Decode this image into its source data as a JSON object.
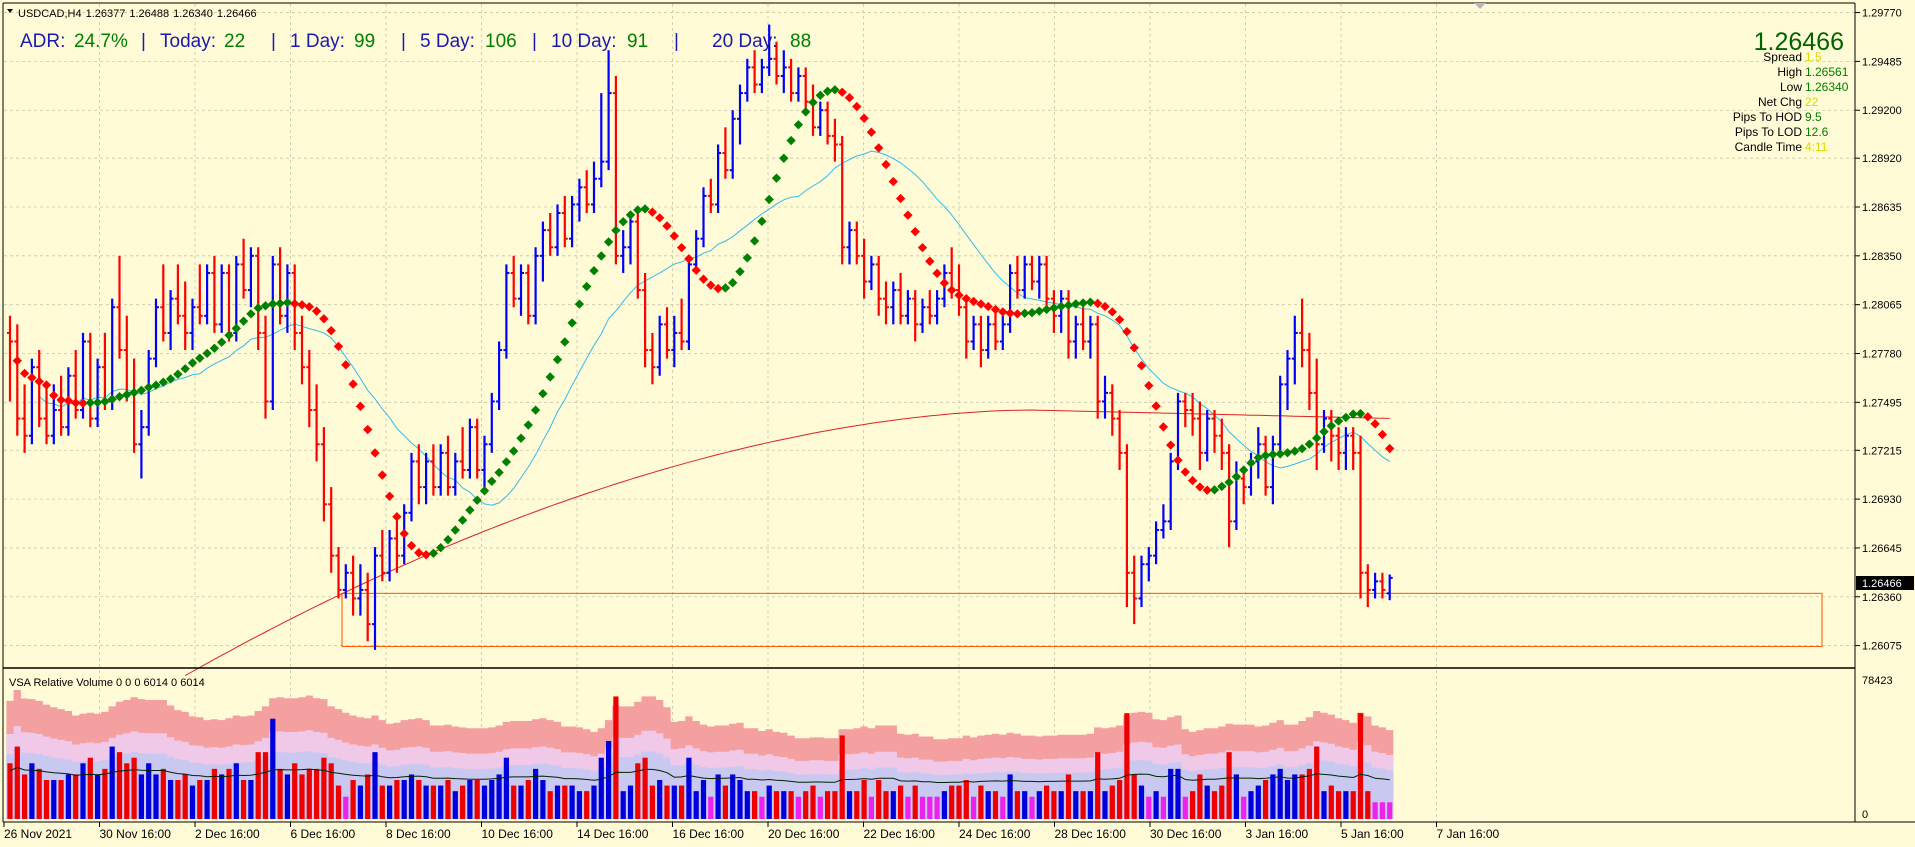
{
  "chart_data": {
    "type": "bar",
    "symbol_header": {
      "symbol": "USDCAD,H4",
      "open": "1.26377",
      "high": "1.26488",
      "low": "1.26340",
      "close": "1.26466"
    },
    "adr_panel": {
      "adr_label": "ADR:",
      "adr_value": "24.7%",
      "today_label": "Today:",
      "today_value": "22",
      "day1_label": "1 Day:",
      "day1_value": "99",
      "day5_label": "5 Day:",
      "day5_value": "106",
      "day10_label": "10 Day:",
      "day10_value": "91",
      "day20_label": "20 Day:",
      "day20_value": "88",
      "separator": "|"
    },
    "info_panel": {
      "price": "1.26466",
      "rows": [
        {
          "label": "Spread",
          "value": "1.5"
        },
        {
          "label": "High",
          "value": "1.26561"
        },
        {
          "label": "Low",
          "value": "1.26340"
        },
        {
          "label": "Net Chg",
          "value": "22"
        },
        {
          "label": "Pips To HOD",
          "value": "9.5"
        },
        {
          "label": "Pips To LOD",
          "value": "12.6"
        },
        {
          "label": "Candle Time",
          "value": "4:11"
        }
      ]
    },
    "price_axis": {
      "ticks": [
        "1.29770",
        "1.29485",
        "1.29200",
        "1.28920",
        "1.28635",
        "1.28350",
        "1.28065",
        "1.27780",
        "1.27495",
        "1.27215",
        "1.26930",
        "1.26645",
        "1.26360",
        "1.26075"
      ],
      "current_price_label": "1.26466",
      "ylim": [
        1.2595,
        1.2982
      ]
    },
    "time_axis": {
      "labels": [
        "26 Nov 2021",
        "30 Nov 16:00",
        "2 Dec 16:00",
        "6 Dec 16:00",
        "8 Dec 16:00",
        "10 Dec 16:00",
        "14 Dec 16:00",
        "16 Dec 16:00",
        "20 Dec 16:00",
        "22 Dec 16:00",
        "24 Dec 16:00",
        "28 Dec 16:00",
        "30 Dec 16:00",
        "3 Jan 16:00",
        "5 Jan 16:00",
        "7 Jan 16:00"
      ]
    },
    "ohlc_bars": [
      [
        1.279,
        1.28,
        1.275,
        1.2785
      ],
      [
        1.2785,
        1.2795,
        1.273,
        1.274
      ],
      [
        1.274,
        1.276,
        1.272,
        1.273
      ],
      [
        1.273,
        1.2775,
        1.2725,
        1.277
      ],
      [
        1.277,
        1.278,
        1.2735,
        1.274
      ],
      [
        1.274,
        1.276,
        1.2725,
        1.273
      ],
      [
        1.273,
        1.276,
        1.2725,
        1.2745
      ],
      [
        1.2745,
        1.2765,
        1.273,
        1.2735
      ],
      [
        1.2735,
        1.277,
        1.273,
        1.2765
      ],
      [
        1.2765,
        1.278,
        1.274,
        1.2745
      ],
      [
        1.2745,
        1.279,
        1.274,
        1.2785
      ],
      [
        1.2785,
        1.279,
        1.2735,
        1.274
      ],
      [
        1.274,
        1.2775,
        1.2735,
        1.277
      ],
      [
        1.277,
        1.279,
        1.2745,
        1.275
      ],
      [
        1.275,
        1.281,
        1.2745,
        1.2805
      ],
      [
        1.2805,
        1.2835,
        1.2775,
        1.278
      ],
      [
        1.278,
        1.28,
        1.275,
        1.2755
      ],
      [
        1.2755,
        1.2775,
        1.272,
        1.2725
      ],
      [
        1.2725,
        1.2745,
        1.2705,
        1.2735
      ],
      [
        1.2735,
        1.278,
        1.273,
        1.2775
      ],
      [
        1.2775,
        1.281,
        1.277,
        1.2805
      ],
      [
        1.2805,
        1.283,
        1.2785,
        1.279
      ],
      [
        1.279,
        1.2815,
        1.278,
        1.281
      ],
      [
        1.281,
        1.283,
        1.2795,
        1.28
      ],
      [
        1.28,
        1.282,
        1.278,
        1.279
      ],
      [
        1.279,
        1.281,
        1.278,
        1.2805
      ],
      [
        1.2805,
        1.283,
        1.2795,
        1.28
      ],
      [
        1.28,
        1.283,
        1.2795,
        1.2825
      ],
      [
        1.2825,
        1.2835,
        1.279,
        1.2795
      ],
      [
        1.2795,
        1.283,
        1.279,
        1.2825
      ],
      [
        1.2825,
        1.283,
        1.2785,
        1.279
      ],
      [
        1.279,
        1.2835,
        1.2785,
        1.283
      ],
      [
        1.283,
        1.2845,
        1.281,
        1.2815
      ],
      [
        1.2815,
        1.284,
        1.2805,
        1.2835
      ],
      [
        1.2835,
        1.284,
        1.278,
        1.279
      ],
      [
        1.279,
        1.28,
        1.274,
        1.275
      ],
      [
        1.275,
        1.2835,
        1.2745,
        1.283
      ],
      [
        1.283,
        1.284,
        1.2795,
        1.28
      ],
      [
        1.28,
        1.283,
        1.279,
        1.2825
      ],
      [
        1.2825,
        1.283,
        1.278,
        1.279
      ],
      [
        1.279,
        1.28,
        1.276,
        1.277
      ],
      [
        1.277,
        1.278,
        1.2735,
        1.2745
      ],
      [
        1.2745,
        1.276,
        1.2715,
        1.2725
      ],
      [
        1.2725,
        1.2735,
        1.268,
        1.269
      ],
      [
        1.269,
        1.27,
        1.265,
        1.266
      ],
      [
        1.266,
        1.2665,
        1.2635,
        1.264
      ],
      [
        1.264,
        1.2655,
        1.2635,
        1.265
      ],
      [
        1.265,
        1.266,
        1.2625,
        1.2635
      ],
      [
        1.2635,
        1.2655,
        1.2625,
        1.264
      ],
      [
        1.264,
        1.265,
        1.261,
        1.262
      ],
      [
        1.262,
        1.2665,
        1.2605,
        1.266
      ],
      [
        1.266,
        1.2675,
        1.2645,
        1.265
      ],
      [
        1.265,
        1.2675,
        1.2645,
        1.267
      ],
      [
        1.267,
        1.2685,
        1.265,
        1.266
      ],
      [
        1.266,
        1.269,
        1.2655,
        1.2685
      ],
      [
        1.2685,
        1.272,
        1.268,
        1.2715
      ],
      [
        1.2715,
        1.2725,
        1.269,
        1.27
      ],
      [
        1.27,
        1.272,
        1.269,
        1.2715
      ],
      [
        1.2715,
        1.2725,
        1.2695,
        1.27
      ],
      [
        1.27,
        1.2725,
        1.2695,
        1.272
      ],
      [
        1.272,
        1.273,
        1.2695,
        1.27
      ],
      [
        1.27,
        1.272,
        1.2695,
        1.2715
      ],
      [
        1.2715,
        1.2735,
        1.2705,
        1.271
      ],
      [
        1.271,
        1.274,
        1.2705,
        1.2735
      ],
      [
        1.2735,
        1.274,
        1.2705,
        1.271
      ],
      [
        1.271,
        1.273,
        1.27,
        1.2725
      ],
      [
        1.2725,
        1.2755,
        1.272,
        1.275
      ],
      [
        1.275,
        1.2785,
        1.2745,
        1.278
      ],
      [
        1.278,
        1.283,
        1.2775,
        1.2825
      ],
      [
        1.2825,
        1.2835,
        1.2805,
        1.281
      ],
      [
        1.281,
        1.283,
        1.28,
        1.2825
      ],
      [
        1.2825,
        1.283,
        1.2795,
        1.28
      ],
      [
        1.28,
        1.284,
        1.2795,
        1.2835
      ],
      [
        1.2835,
        1.2855,
        1.282,
        1.285
      ],
      [
        1.285,
        1.286,
        1.2835,
        1.284
      ],
      [
        1.284,
        1.2865,
        1.2835,
        1.286
      ],
      [
        1.286,
        1.287,
        1.284,
        1.2845
      ],
      [
        1.2845,
        1.287,
        1.284,
        1.2865
      ],
      [
        1.2865,
        1.288,
        1.2855,
        1.2875
      ],
      [
        1.2875,
        1.2885,
        1.286,
        1.2865
      ],
      [
        1.2865,
        1.289,
        1.286,
        1.288
      ],
      [
        1.288,
        1.293,
        1.2875,
        1.289
      ],
      [
        1.289,
        1.2955,
        1.2885,
        1.293
      ],
      [
        1.293,
        1.294,
        1.283,
        1.2835
      ],
      [
        1.2835,
        1.285,
        1.2825,
        1.284
      ],
      [
        1.284,
        1.286,
        1.283,
        1.2855
      ],
      [
        1.2855,
        1.286,
        1.281,
        1.2815
      ],
      [
        1.2815,
        1.2825,
        1.277,
        1.278
      ],
      [
        1.278,
        1.279,
        1.276,
        1.277
      ],
      [
        1.277,
        1.28,
        1.2765,
        1.2795
      ],
      [
        1.2795,
        1.2805,
        1.2775,
        1.278
      ],
      [
        1.278,
        1.28,
        1.277,
        1.279
      ],
      [
        1.279,
        1.281,
        1.278,
        1.2785
      ],
      [
        1.2785,
        1.2835,
        1.278,
        1.283
      ],
      [
        1.283,
        1.285,
        1.2825,
        1.2845
      ],
      [
        1.2845,
        1.2875,
        1.284,
        1.287
      ],
      [
        1.287,
        1.288,
        1.286,
        1.2865
      ],
      [
        1.2865,
        1.29,
        1.286,
        1.2895
      ],
      [
        1.2895,
        1.291,
        1.288,
        1.2885
      ],
      [
        1.2885,
        1.292,
        1.288,
        1.2915
      ],
      [
        1.2915,
        1.2935,
        1.29,
        1.293
      ],
      [
        1.293,
        1.295,
        1.2925,
        1.2945
      ],
      [
        1.2945,
        1.2955,
        1.293,
        1.2935
      ],
      [
        1.2935,
        1.295,
        1.293,
        1.2945
      ],
      [
        1.2945,
        1.297,
        1.294,
        1.295
      ],
      [
        1.295,
        1.296,
        1.2935,
        1.294
      ],
      [
        1.294,
        1.2955,
        1.293,
        1.2945
      ],
      [
        1.2945,
        1.295,
        1.2925,
        1.293
      ],
      [
        1.293,
        1.2945,
        1.2925,
        1.294
      ],
      [
        1.294,
        1.2945,
        1.292,
        1.2925
      ],
      [
        1.2925,
        1.2935,
        1.2905,
        1.291
      ],
      [
        1.291,
        1.2925,
        1.2905,
        1.292
      ],
      [
        1.292,
        1.2925,
        1.29,
        1.2905
      ],
      [
        1.2905,
        1.2915,
        1.289,
        1.29
      ],
      [
        1.29,
        1.2905,
        1.283,
        1.284
      ],
      [
        1.284,
        1.2855,
        1.283,
        1.285
      ],
      [
        1.285,
        1.2855,
        1.283,
        1.2835
      ],
      [
        1.2835,
        1.2845,
        1.281,
        1.282
      ],
      [
        1.282,
        1.2835,
        1.2815,
        1.283
      ],
      [
        1.283,
        1.2835,
        1.28,
        1.281
      ],
      [
        1.281,
        1.282,
        1.2795,
        1.2805
      ],
      [
        1.2805,
        1.282,
        1.2795,
        1.2815
      ],
      [
        1.2815,
        1.2825,
        1.2795,
        1.28
      ],
      [
        1.28,
        1.2815,
        1.2795,
        1.281
      ],
      [
        1.281,
        1.2815,
        1.2785,
        1.2795
      ],
      [
        1.2795,
        1.281,
        1.279,
        1.2805
      ],
      [
        1.2805,
        1.2815,
        1.2795,
        1.28
      ],
      [
        1.28,
        1.2815,
        1.2795,
        1.281
      ],
      [
        1.281,
        1.283,
        1.2805,
        1.2825
      ],
      [
        1.2825,
        1.284,
        1.281,
        1.2815
      ],
      [
        1.2815,
        1.283,
        1.28,
        1.2805
      ],
      [
        1.2805,
        1.281,
        1.2775,
        1.2785
      ],
      [
        1.2785,
        1.28,
        1.278,
        1.2795
      ],
      [
        1.2795,
        1.28,
        1.277,
        1.278
      ],
      [
        1.278,
        1.28,
        1.2775,
        1.2795
      ],
      [
        1.2795,
        1.2805,
        1.278,
        1.2785
      ],
      [
        1.2785,
        1.28,
        1.278,
        1.2795
      ],
      [
        1.2795,
        1.283,
        1.279,
        1.2825
      ],
      [
        1.2825,
        1.2835,
        1.281,
        1.2815
      ],
      [
        1.2815,
        1.2835,
        1.281,
        1.283
      ],
      [
        1.283,
        1.2835,
        1.2815,
        1.282
      ],
      [
        1.282,
        1.2835,
        1.281,
        1.283
      ],
      [
        1.283,
        1.2835,
        1.2805,
        1.281
      ],
      [
        1.281,
        1.2815,
        1.279,
        1.28
      ],
      [
        1.28,
        1.2815,
        1.279,
        1.281
      ],
      [
        1.281,
        1.2815,
        1.2775,
        1.2785
      ],
      [
        1.2785,
        1.28,
        1.2775,
        1.2795
      ],
      [
        1.2795,
        1.2805,
        1.278,
        1.2785
      ],
      [
        1.2785,
        1.28,
        1.2775,
        1.2795
      ],
      [
        1.2795,
        1.28,
        1.274,
        1.275
      ],
      [
        1.275,
        1.2765,
        1.274,
        1.2755
      ],
      [
        1.2755,
        1.276,
        1.273,
        1.274
      ],
      [
        1.274,
        1.2745,
        1.271,
        1.272
      ],
      [
        1.272,
        1.2725,
        1.263,
        1.265
      ],
      [
        1.265,
        1.266,
        1.262,
        1.2635
      ],
      [
        1.2635,
        1.266,
        1.263,
        1.2655
      ],
      [
        1.2655,
        1.2665,
        1.2645,
        1.266
      ],
      [
        1.266,
        1.268,
        1.2655,
        1.2675
      ],
      [
        1.2675,
        1.269,
        1.267,
        1.268
      ],
      [
        1.268,
        1.272,
        1.2675,
        1.2715
      ],
      [
        1.2715,
        1.2755,
        1.271,
        1.275
      ],
      [
        1.275,
        1.2755,
        1.2735,
        1.2745
      ],
      [
        1.2745,
        1.2755,
        1.273,
        1.274
      ],
      [
        1.274,
        1.275,
        1.271,
        1.272
      ],
      [
        1.272,
        1.2745,
        1.2715,
        1.274
      ],
      [
        1.274,
        1.2745,
        1.272,
        1.273
      ],
      [
        1.273,
        1.274,
        1.271,
        1.272
      ],
      [
        1.272,
        1.2725,
        1.2665,
        1.268
      ],
      [
        1.268,
        1.2715,
        1.2675,
        1.2705
      ],
      [
        1.2705,
        1.271,
        1.269,
        1.27
      ],
      [
        1.27,
        1.272,
        1.2695,
        1.2715
      ],
      [
        1.2715,
        1.2735,
        1.2705,
        1.2725
      ],
      [
        1.2725,
        1.273,
        1.2695,
        1.27
      ],
      [
        1.27,
        1.273,
        1.269,
        1.2725
      ],
      [
        1.2725,
        1.2765,
        1.272,
        1.276
      ],
      [
        1.276,
        1.278,
        1.2745,
        1.2775
      ],
      [
        1.2775,
        1.28,
        1.276,
        1.279
      ],
      [
        1.279,
        1.281,
        1.277,
        1.278
      ],
      [
        1.278,
        1.279,
        1.2745,
        1.2755
      ],
      [
        1.2755,
        1.2775,
        1.271,
        1.2725
      ],
      [
        1.2725,
        1.2745,
        1.272,
        1.274
      ],
      [
        1.274,
        1.2745,
        1.2715,
        1.273
      ],
      [
        1.273,
        1.2735,
        1.271,
        1.272
      ],
      [
        1.272,
        1.2735,
        1.271,
        1.273
      ],
      [
        1.273,
        1.2735,
        1.271,
        1.272
      ],
      [
        1.272,
        1.273,
        1.2635,
        1.265
      ],
      [
        1.265,
        1.2655,
        1.263,
        1.264
      ],
      [
        1.264,
        1.265,
        1.2635,
        1.2645
      ],
      [
        1.2645,
        1.265,
        1.2635,
        1.264
      ],
      [
        1.2638,
        1.2649,
        1.2634,
        1.2647
      ]
    ],
    "support_zone": {
      "top": 1.2638,
      "bottom": 1.2607
    },
    "legend_text": "VSA Relative Volume 0 0 0 6014 0 6014",
    "volume_axis": {
      "top_label": "78423",
      "bottom_label": "0",
      "max": 78423
    },
    "colors": {
      "background": "#FFFBD6",
      "bull_bar": "#0000FF",
      "bear_bar": "#FF0000",
      "ma_up": "#008000",
      "ma_down": "#FF0000",
      "ma_fast": "#33BBEE",
      "ma_slow": "#DD2222",
      "grid": "#C8C8A8",
      "adr_label": "#1A1AB0",
      "adr_value": "#008000",
      "info_price": "#006400",
      "info_value_green": "#008000",
      "info_value_yellow": "#D8D800",
      "zone": "#FF5500",
      "vol_band_1": "#F5A0A0",
      "vol_band_2": "#F0C8E8",
      "vol_band_3": "#C8C8F0",
      "vol_blue": "#0000DD",
      "vol_red": "#EE0000",
      "vol_magenta": "#EE22EE",
      "vol_line": "#002200"
    }
  }
}
